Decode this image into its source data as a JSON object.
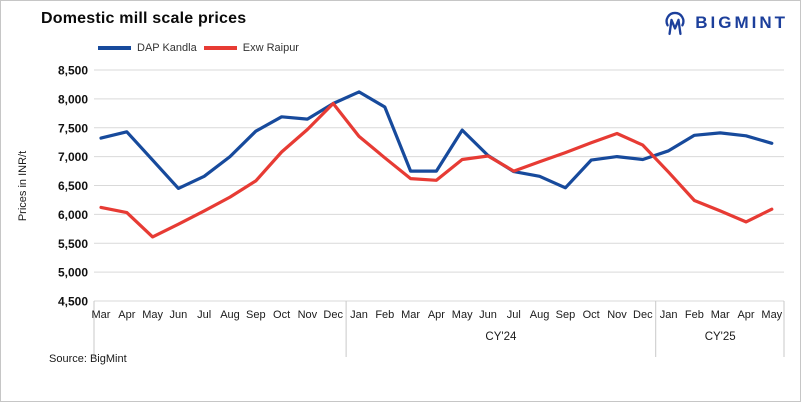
{
  "header": {
    "title": "Domestic mill scale prices",
    "logo_text": "BIGMINT",
    "logo_color": "#1c3f9b"
  },
  "legend": [
    {
      "label": "DAP Kandla",
      "color": "#174a9c"
    },
    {
      "label": "Exw Raipur",
      "color": "#e73b34"
    }
  ],
  "source": "Source: BigMint",
  "chart_data": {
    "type": "line",
    "title": "Domestic mill scale prices",
    "xlabel": "",
    "ylabel": "Prices in INR/t",
    "ylim": [
      4500,
      8500
    ],
    "ytick_step": 500,
    "grid": "horizontal-only",
    "gridline_color": "#d9d9d9",
    "legend_position": "top-left",
    "categories": [
      "Mar",
      "Apr",
      "May",
      "Jun",
      "Jul",
      "Aug",
      "Sep",
      "Oct",
      "Nov",
      "Dec",
      "Jan",
      "Feb",
      "Mar",
      "Apr",
      "May",
      "Jun",
      "Jul",
      "Aug",
      "Sep",
      "Oct",
      "Nov",
      "Dec",
      "Jan",
      "Feb",
      "Mar",
      "Apr",
      "May"
    ],
    "year_groups": [
      {
        "label": "",
        "from": 0,
        "to": 9
      },
      {
        "label": "CY'24",
        "from": 10,
        "to": 21
      },
      {
        "label": "CY'25",
        "from": 22,
        "to": 26
      }
    ],
    "series": [
      {
        "name": "DAP Kandla",
        "color": "#174a9c",
        "values": [
          7320,
          7430,
          6940,
          6450,
          6660,
          7000,
          7440,
          7690,
          7650,
          7920,
          8120,
          7860,
          6750,
          6750,
          7460,
          7020,
          6740,
          6660,
          6460,
          6940,
          7000,
          6950,
          7100,
          7370,
          7410,
          7360,
          7230
        ]
      },
      {
        "name": "Exw Raipur",
        "color": "#e73b34",
        "values": [
          6120,
          6030,
          5610,
          5830,
          6060,
          6300,
          6580,
          7080,
          7470,
          7920,
          7350,
          6980,
          6620,
          6590,
          6950,
          7010,
          6750,
          6910,
          7070,
          7240,
          7400,
          7200,
          6730,
          6240,
          6060,
          5870,
          6090
        ]
      }
    ]
  }
}
